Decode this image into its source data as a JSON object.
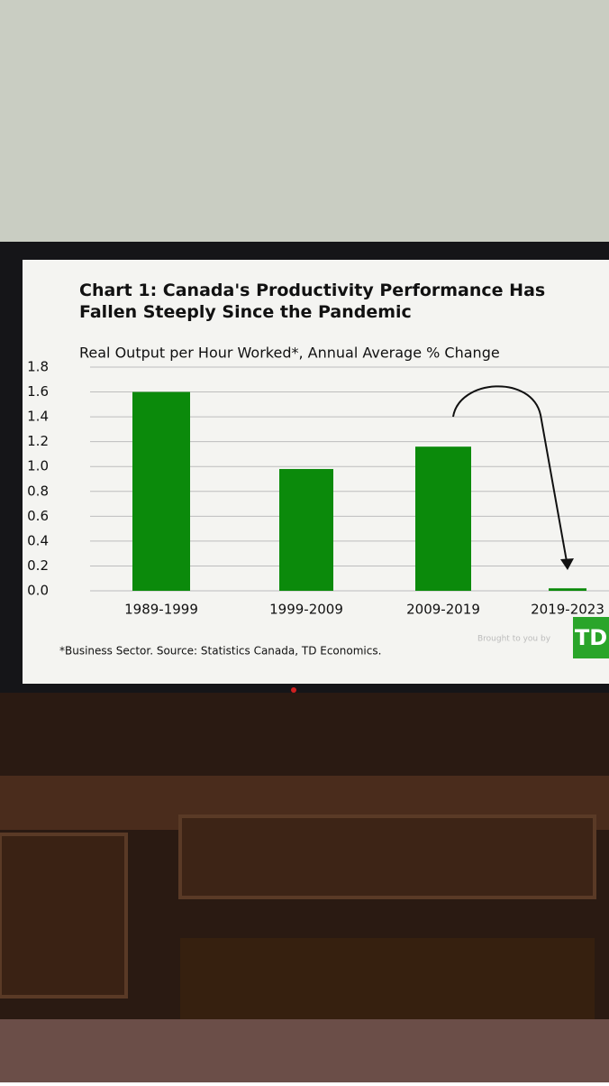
{
  "chart_data": {
    "type": "bar",
    "title": "Chart 1: Canada's Productivity Performance Has Fallen Steeply Since the Pandemic",
    "subtitle": "Real Output per Hour Worked*, Annual Average % Change",
    "categories": [
      "1989-1999",
      "1999-2009",
      "2009-2019",
      "2019-2023"
    ],
    "values": [
      1.6,
      0.98,
      1.16,
      0.02
    ],
    "color": "#0b8a0b",
    "ylim": [
      0,
      1.8
    ],
    "yticks": [
      {
        "value": 0,
        "label": "0.0"
      },
      0.2,
      0.4,
      0.6,
      0.8,
      {
        "value": 1,
        "label": "1.0"
      },
      1.2,
      1.4,
      1.6,
      1.8
    ],
    "grid": true,
    "footnote": "*Business Sector. Source: Statistics Canada, TD Economics.",
    "sponsor_text": "Brought to you by",
    "logo": "TD"
  }
}
